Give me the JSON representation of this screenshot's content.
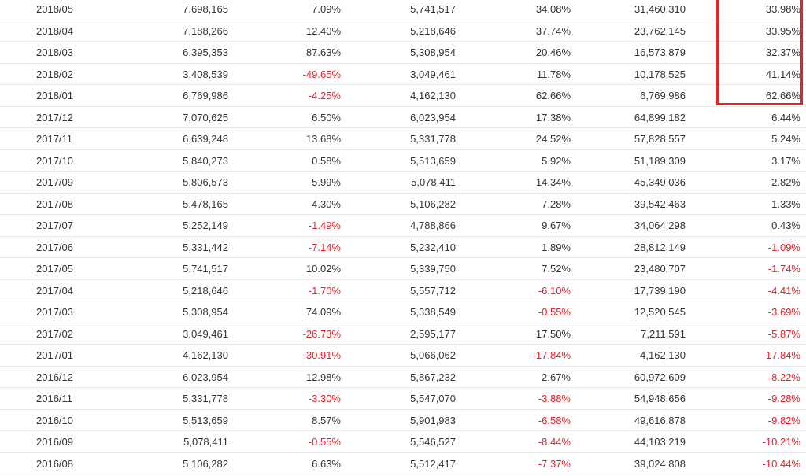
{
  "table": {
    "rows": [
      {
        "period": "2018/05",
        "col1": "7,698,165",
        "col2": "7.09%",
        "col3": "5,741,517",
        "col4": "34.08%",
        "col5": "31,460,310",
        "col6": "33.98%"
      },
      {
        "period": "2018/04",
        "col1": "7,188,266",
        "col2": "12.40%",
        "col3": "5,218,646",
        "col4": "37.74%",
        "col5": "23,762,145",
        "col6": "33.95%"
      },
      {
        "period": "2018/03",
        "col1": "6,395,353",
        "col2": "87.63%",
        "col3": "5,308,954",
        "col4": "20.46%",
        "col5": "16,573,879",
        "col6": "32.37%"
      },
      {
        "period": "2018/02",
        "col1": "3,408,539",
        "col2": "-49.65%",
        "col3": "3,049,461",
        "col4": "11.78%",
        "col5": "10,178,525",
        "col6": "41.14%"
      },
      {
        "period": "2018/01",
        "col1": "6,769,986",
        "col2": "-4.25%",
        "col3": "4,162,130",
        "col4": "62.66%",
        "col5": "6,769,986",
        "col6": "62.66%"
      },
      {
        "period": "2017/12",
        "col1": "7,070,625",
        "col2": "6.50%",
        "col3": "6,023,954",
        "col4": "17.38%",
        "col5": "64,899,182",
        "col6": "6.44%"
      },
      {
        "period": "2017/11",
        "col1": "6,639,248",
        "col2": "13.68%",
        "col3": "5,331,778",
        "col4": "24.52%",
        "col5": "57,828,557",
        "col6": "5.24%"
      },
      {
        "period": "2017/10",
        "col1": "5,840,273",
        "col2": "0.58%",
        "col3": "5,513,659",
        "col4": "5.92%",
        "col5": "51,189,309",
        "col6": "3.17%"
      },
      {
        "period": "2017/09",
        "col1": "5,806,573",
        "col2": "5.99%",
        "col3": "5,078,411",
        "col4": "14.34%",
        "col5": "45,349,036",
        "col6": "2.82%"
      },
      {
        "period": "2017/08",
        "col1": "5,478,165",
        "col2": "4.30%",
        "col3": "5,106,282",
        "col4": "7.28%",
        "col5": "39,542,463",
        "col6": "1.33%"
      },
      {
        "period": "2017/07",
        "col1": "5,252,149",
        "col2": "-1.49%",
        "col3": "4,788,866",
        "col4": "9.67%",
        "col5": "34,064,298",
        "col6": "0.43%"
      },
      {
        "period": "2017/06",
        "col1": "5,331,442",
        "col2": "-7.14%",
        "col3": "5,232,410",
        "col4": "1.89%",
        "col5": "28,812,149",
        "col6": "-1.09%"
      },
      {
        "period": "2017/05",
        "col1": "5,741,517",
        "col2": "10.02%",
        "col3": "5,339,750",
        "col4": "7.52%",
        "col5": "23,480,707",
        "col6": "-1.74%"
      },
      {
        "period": "2017/04",
        "col1": "5,218,646",
        "col2": "-1.70%",
        "col3": "5,557,712",
        "col4": "-6.10%",
        "col5": "17,739,190",
        "col6": "-4.41%"
      },
      {
        "period": "2017/03",
        "col1": "5,308,954",
        "col2": "74.09%",
        "col3": "5,338,549",
        "col4": "-0.55%",
        "col5": "12,520,545",
        "col6": "-3.69%"
      },
      {
        "period": "2017/02",
        "col1": "3,049,461",
        "col2": "-26.73%",
        "col3": "2,595,177",
        "col4": "17.50%",
        "col5": "7,211,591",
        "col6": "-5.87%"
      },
      {
        "period": "2017/01",
        "col1": "4,162,130",
        "col2": "-30.91%",
        "col3": "5,066,062",
        "col4": "-17.84%",
        "col5": "4,162,130",
        "col6": "-17.84%"
      },
      {
        "period": "2016/12",
        "col1": "6,023,954",
        "col2": "12.98%",
        "col3": "5,867,232",
        "col4": "2.67%",
        "col5": "60,972,609",
        "col6": "-8.22%"
      },
      {
        "period": "2016/11",
        "col1": "5,331,778",
        "col2": "-3.30%",
        "col3": "5,547,070",
        "col4": "-3.88%",
        "col5": "54,948,656",
        "col6": "-9.28%"
      },
      {
        "period": "2016/10",
        "col1": "5,513,659",
        "col2": "8.57%",
        "col3": "5,901,983",
        "col4": "-6.58%",
        "col5": "49,616,878",
        "col6": "-9.82%"
      },
      {
        "period": "2016/09",
        "col1": "5,078,411",
        "col2": "-0.55%",
        "col3": "5,546,527",
        "col4": "-8.44%",
        "col5": "44,103,219",
        "col6": "-10.21%"
      },
      {
        "period": "2016/08",
        "col1": "5,106,282",
        "col2": "6.63%",
        "col3": "5,512,417",
        "col4": "-7.37%",
        "col5": "39,024,808",
        "col6": "-10.44%"
      }
    ]
  },
  "highlight": {
    "color": "#e8202a",
    "column": "col6",
    "rows": [
      "2018/05",
      "2018/04",
      "2018/03",
      "2018/02",
      "2018/01"
    ]
  },
  "colors": {
    "text": "#333333",
    "negative": "#e8202a",
    "row_border": "#e6e6e6"
  }
}
